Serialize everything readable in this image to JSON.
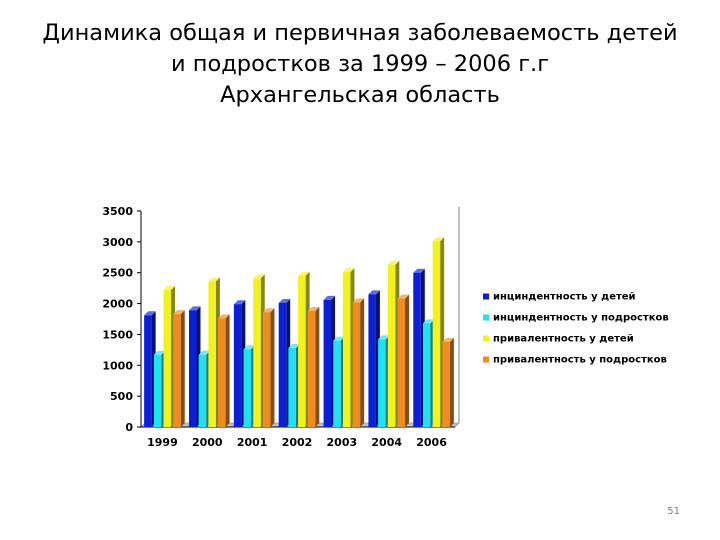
{
  "slide": {
    "title_lines": [
      "Динамика общая и первичная заболеваемость детей",
      "и подростков за 1999 – 2006 г.г",
      "Архангельская область"
    ],
    "page_number": "51"
  },
  "chart_data": {
    "type": "bar",
    "categories": [
      "1999",
      "2000",
      "2001",
      "2002",
      "2003",
      "2004",
      "2006"
    ],
    "series": [
      {
        "name": "инциндентность у детей",
        "color": "#0b1fd6",
        "values": [
          1810,
          1890,
          1990,
          2010,
          2060,
          2150,
          2500
        ]
      },
      {
        "name": "инциндентность у подростков",
        "color": "#22e0f0",
        "values": [
          1170,
          1170,
          1260,
          1280,
          1400,
          1420,
          1680
        ]
      },
      {
        "name": "привалентность у детей",
        "color": "#f2f21c",
        "values": [
          2220,
          2360,
          2410,
          2450,
          2510,
          2630,
          3010
        ]
      },
      {
        "name": "привалентность у подростков",
        "color": "#ee8c22",
        "values": [
          1830,
          1760,
          1860,
          1880,
          2020,
          2080,
          1380
        ]
      }
    ],
    "yticks": [
      "0",
      "500",
      "1000",
      "1500",
      "2000",
      "2500",
      "3000",
      "3500"
    ],
    "ylim": [
      0,
      3500
    ],
    "legend_position": "right",
    "grid": false
  }
}
